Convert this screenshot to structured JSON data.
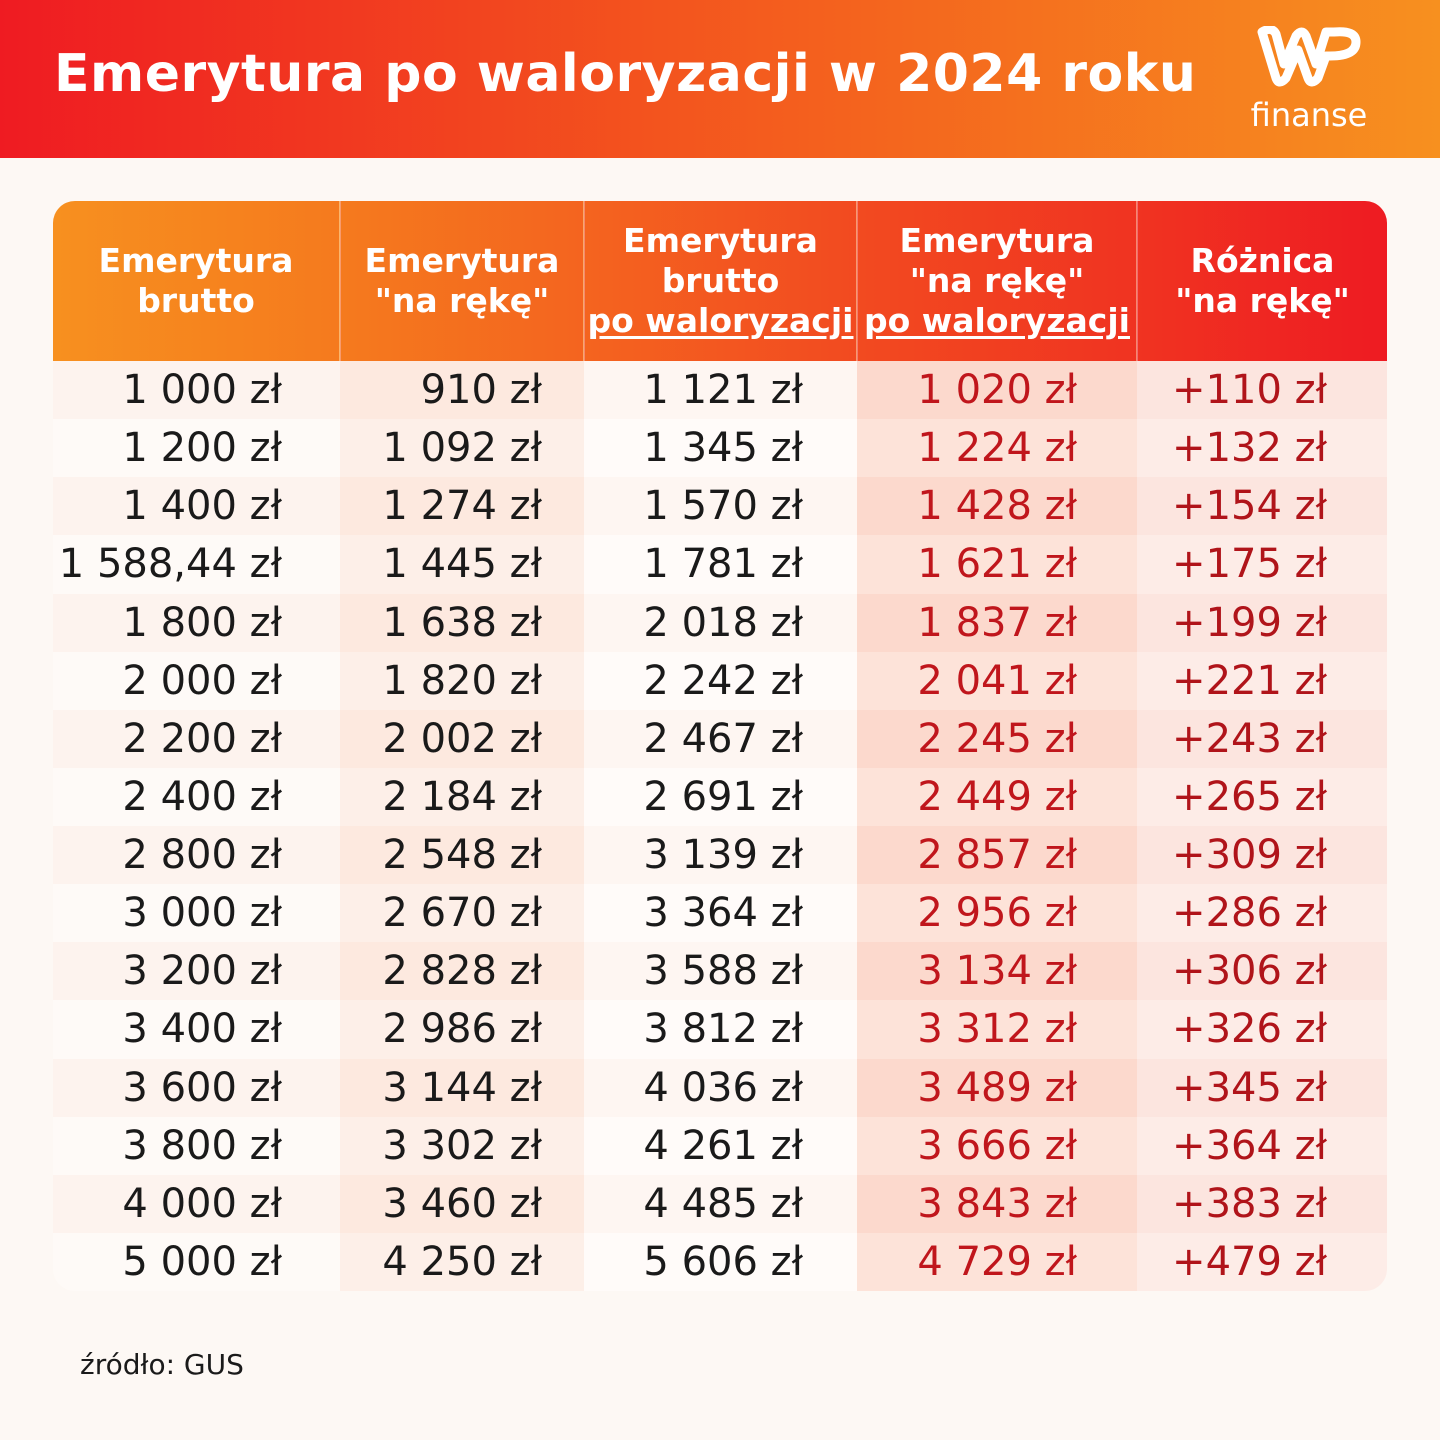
{
  "title": "Emerytura po waloryzacji w 2024 roku",
  "logo": {
    "mark": "WP",
    "sub": "finanse"
  },
  "headers": [
    {
      "line1": "Emerytura",
      "line2": "brutto",
      "line3": ""
    },
    {
      "line1": "Emerytura",
      "line2": "\"na rękę\"",
      "line3": ""
    },
    {
      "line1": "Emerytura",
      "line2": "brutto",
      "line3": "po waloryzacji"
    },
    {
      "line1": "Emerytura",
      "line2": "\"na rękę\"",
      "line3": "po waloryzacji"
    },
    {
      "line1": "Różnica",
      "line2": "\"na rękę\"",
      "line3": ""
    }
  ],
  "rows": [
    [
      "1 000 zł",
      "910 zł",
      "1 121 zł",
      "1 020 zł",
      "+110 zł"
    ],
    [
      "1 200 zł",
      "1 092 zł",
      "1 345 zł",
      "1 224 zł",
      "+132 zł"
    ],
    [
      "1 400 zł",
      "1 274 zł",
      "1 570 zł",
      "1 428 zł",
      "+154 zł"
    ],
    [
      "1 588,44 zł",
      "1 445 zł",
      "1 781 zł",
      "1 621 zł",
      "+175 zł"
    ],
    [
      "1 800 zł",
      "1 638 zł",
      "2 018 zł",
      "1 837 zł",
      "+199 zł"
    ],
    [
      "2 000 zł",
      "1 820 zł",
      "2 242 zł",
      "2 041 zł",
      "+221 zł"
    ],
    [
      "2 200 zł",
      "2 002 zł",
      "2 467 zł",
      "2 245 zł",
      "+243 zł"
    ],
    [
      "2 400 zł",
      "2 184 zł",
      "2 691 zł",
      "2 449 zł",
      "+265 zł"
    ],
    [
      "2 800 zł",
      "2 548 zł",
      "3 139 zł",
      "2 857 zł",
      "+309 zł"
    ],
    [
      "3 000 zł",
      "2 670 zł",
      "3 364 zł",
      "2 956 zł",
      "+286 zł"
    ],
    [
      "3 200 zł",
      "2 828 zł",
      "3 588 zł",
      "3 134 zł",
      "+306 zł"
    ],
    [
      "3 400 zł",
      "2 986 zł",
      "3 812 zł",
      "3 312 zł",
      "+326 zł"
    ],
    [
      "3 600 zł",
      "3 144 zł",
      "4 036 zł",
      "3 489 zł",
      "+345 zł"
    ],
    [
      "3 800 zł",
      "3 302 zł",
      "4 261 zł",
      "3 666 zł",
      "+364 zł"
    ],
    [
      "4 000 zł",
      "3 460 zł",
      "4 485 zł",
      "3 843 zł",
      "+383 zł"
    ],
    [
      "5 000 zł",
      "4 250 zł",
      "5 606 zł",
      "4 729 zł",
      "+479 zł"
    ]
  ],
  "source": "źródło: GUS",
  "colors": {
    "header_start": "#ef1b22",
    "header_end": "#f7901f",
    "accent_red": "#c0161c"
  }
}
